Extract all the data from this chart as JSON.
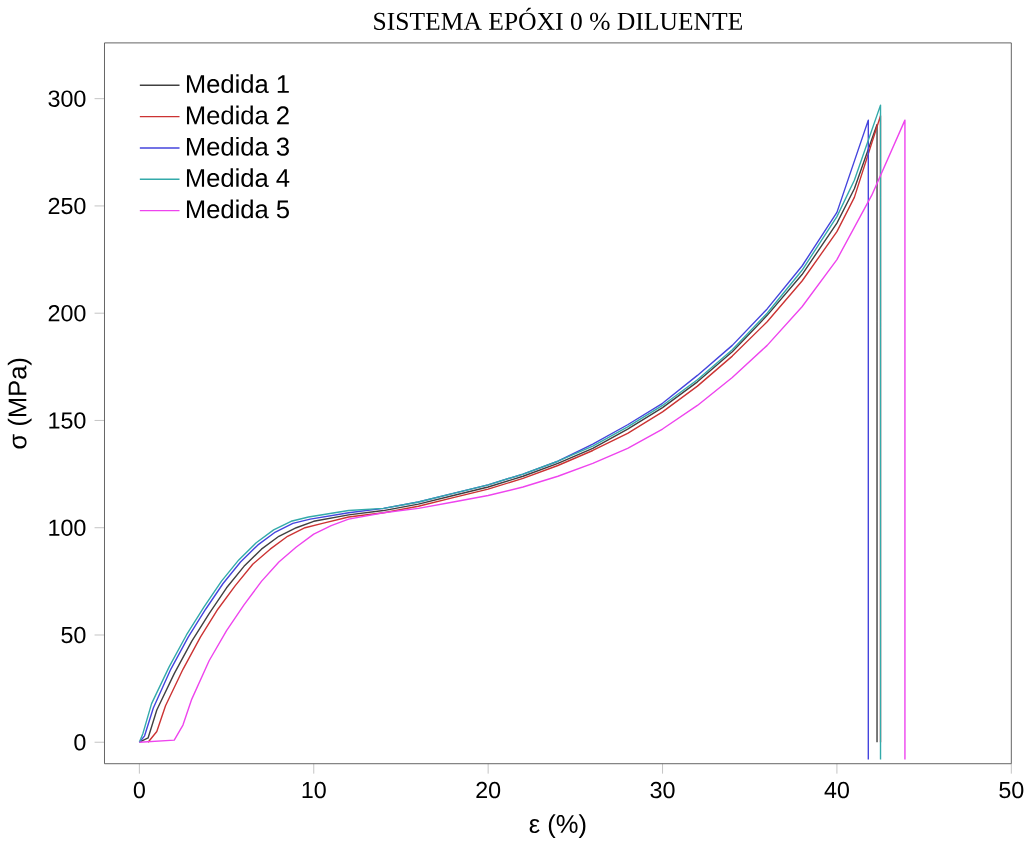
{
  "chart_data": {
    "type": "line",
    "title": "SISTEMA EPÓXI 0 % DILUENTE",
    "xlabel": "ε (%)",
    "ylabel": "σ (MPa)",
    "xlim": [
      -2,
      50
    ],
    "ylim": [
      -10,
      326
    ],
    "xticks": [
      0,
      10,
      20,
      30,
      40,
      50
    ],
    "yticks": [
      0,
      50,
      100,
      150,
      200,
      250,
      300
    ],
    "grid": false,
    "legend": "top left",
    "marker": "none",
    "line_style": "solid",
    "series": [
      {
        "name": "Medida 1",
        "color": "#404040",
        "x": [
          0,
          0.5,
          1,
          2,
          3,
          4,
          5,
          6,
          7,
          8,
          9,
          10,
          12,
          14,
          16,
          18,
          20,
          22,
          24,
          26,
          28,
          30,
          32,
          34,
          36,
          38,
          40,
          41,
          42.3,
          42.3
        ],
        "values": [
          0,
          2,
          15,
          32,
          47,
          60,
          72,
          82,
          90,
          96,
          100,
          103,
          106,
          108,
          111,
          115,
          119,
          124,
          130,
          137,
          146,
          156,
          168,
          182,
          199,
          218,
          242,
          258,
          288,
          0
        ]
      },
      {
        "name": "Medida 2",
        "color": "#cc3333",
        "x": [
          0.5,
          1,
          1.5,
          2.5,
          3.5,
          4.5,
          5.5,
          6.5,
          7.5,
          8.5,
          9.5,
          10.5,
          12,
          14,
          16,
          18,
          20,
          22,
          24,
          26,
          28,
          30,
          32,
          34,
          36,
          38,
          40,
          41,
          42.5,
          42.5
        ],
        "values": [
          0,
          5,
          17,
          34,
          49,
          62,
          73,
          83,
          90,
          96,
          100,
          102,
          105,
          107,
          110,
          114,
          118,
          123,
          129,
          136,
          144,
          154,
          166,
          180,
          196,
          215,
          238,
          254,
          292,
          0
        ]
      },
      {
        "name": "Medida 3",
        "color": "#4444dd",
        "x": [
          0,
          0.3,
          0.8,
          1.8,
          2.8,
          3.8,
          4.8,
          5.8,
          6.8,
          7.8,
          8.8,
          9.8,
          12,
          14,
          16,
          18,
          20,
          22,
          24,
          26,
          28,
          30,
          32,
          34,
          36,
          38,
          40,
          41.8,
          41.8
        ],
        "values": [
          0,
          3,
          16,
          34,
          49,
          62,
          74,
          84,
          92,
          98,
          102,
          104,
          107,
          109,
          112,
          116,
          120,
          125,
          131,
          139,
          148,
          158,
          171,
          185,
          202,
          222,
          247,
          290,
          -8
        ]
      },
      {
        "name": "Medida 4",
        "color": "#33aaaa",
        "x": [
          0,
          0.2,
          0.7,
          1.7,
          2.7,
          3.7,
          4.7,
          5.7,
          6.7,
          7.7,
          8.7,
          9.7,
          12,
          14,
          16,
          18,
          20,
          22,
          24,
          26,
          28,
          30,
          32,
          34,
          36,
          38,
          40,
          41,
          42.5,
          42.5
        ],
        "values": [
          0,
          4,
          18,
          35,
          50,
          63,
          75,
          85,
          93,
          99,
          103,
          105,
          108,
          109,
          112,
          116,
          120,
          125,
          131,
          138,
          147,
          157,
          169,
          183,
          200,
          220,
          245,
          262,
          297,
          -8
        ]
      },
      {
        "name": "Medida 5",
        "color": "#ee44ee",
        "x": [
          0,
          2,
          2.5,
          3,
          4,
          5,
          6,
          7,
          8,
          9,
          10,
          11,
          12,
          14,
          16,
          18,
          20,
          22,
          24,
          26,
          28,
          30,
          32,
          34,
          36,
          38,
          40,
          42,
          43.9,
          43.9
        ],
        "values": [
          0,
          1,
          8,
          20,
          38,
          52,
          64,
          75,
          84,
          91,
          97,
          101,
          104,
          107,
          109,
          112,
          115,
          119,
          124,
          130,
          137,
          146,
          157,
          170,
          185,
          203,
          225,
          255,
          290,
          -8
        ]
      }
    ]
  }
}
